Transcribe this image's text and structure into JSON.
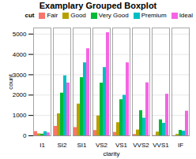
{
  "chart_data": {
    "type": "bar",
    "title": "Examplary Grouped Boxplot",
    "xlabel": "clarity",
    "ylabel": "count",
    "legend_title": "cut",
    "categories": [
      "I1",
      "SI2",
      "SI1",
      "VS2",
      "VS1",
      "VVS2",
      "VVS1",
      "IF"
    ],
    "series": [
      {
        "name": "Fair",
        "color": "#F8766D",
        "values": [
          210,
          466,
          408,
          261,
          170,
          69,
          17,
          9
        ]
      },
      {
        "name": "Good",
        "color": "#B5A000",
        "values": [
          96,
          1081,
          1560,
          978,
          648,
          286,
          186,
          71
        ]
      },
      {
        "name": "Very Good",
        "color": "#00BA38",
        "values": [
          84,
          2100,
          2860,
          2591,
          1775,
          1235,
          789,
          268
        ]
      },
      {
        "name": "Premium",
        "color": "#00BFC4",
        "values": [
          205,
          2949,
          3589,
          3357,
          1989,
          870,
          616,
          230
        ]
      },
      {
        "name": "Ideal",
        "color": "#F564E3",
        "values": [
          146,
          2598,
          4282,
          5071,
          3589,
          2606,
          2047,
          1212
        ]
      }
    ],
    "ylim": [
      0,
      5300
    ],
    "yticks": [
      0,
      1000,
      2000,
      3000,
      4000,
      5000
    ],
    "grid": true,
    "legend": "upper right"
  }
}
